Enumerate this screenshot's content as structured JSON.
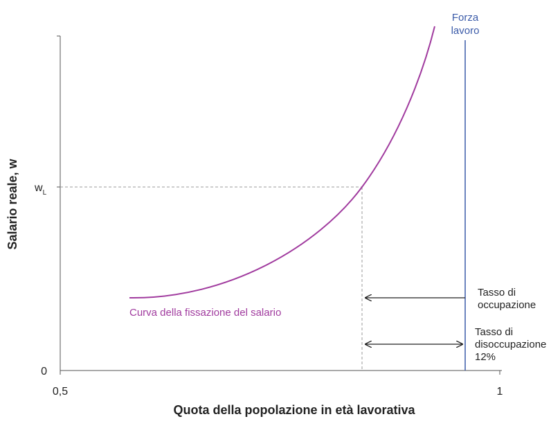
{
  "axes": {
    "x_title": "Quota della popolazione in età lavorativa",
    "y_title": "Salario reale, w",
    "x_ticks": [
      "0,5",
      "1"
    ],
    "y_ticks": [
      "0"
    ],
    "wage_label": {
      "base": "w",
      "subscript": "L"
    }
  },
  "labels": {
    "labor_force": [
      "Forza",
      "lavoro"
    ],
    "curve": "Curva della fissazione del salario",
    "employment": [
      "Tasso di",
      "occupazione"
    ],
    "unemployment": [
      "Tasso di",
      "disoccupazione",
      "12%"
    ]
  }
}
